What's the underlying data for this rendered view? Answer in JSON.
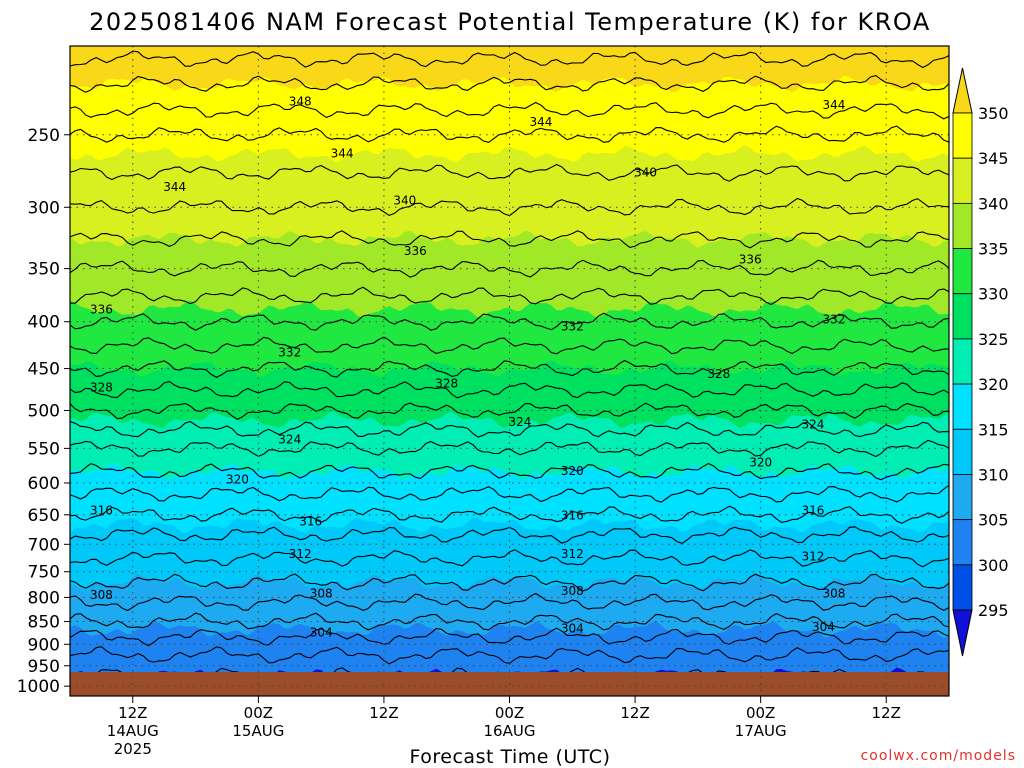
{
  "chart_data": {
    "type": "heatmap",
    "title": "2025081406 NAM Forecast Potential Temperature (K) for KROA",
    "xlabel": "Forecast Time (UTC)",
    "credit": "coolwx.com/models",
    "y_ticks": [
      250,
      300,
      350,
      400,
      450,
      500,
      550,
      600,
      650,
      700,
      750,
      800,
      850,
      900,
      950,
      1000
    ],
    "y_range": [
      200,
      1025
    ],
    "y_scale": "log-pressure, inverted",
    "surface_pressure": 965,
    "x_ticks": [
      {
        "hour": 12,
        "l1": "12Z",
        "l2": "14AUG",
        "l3": "2025"
      },
      {
        "hour": 24,
        "l1": "00Z",
        "l2": "15AUG",
        "l3": ""
      },
      {
        "hour": 36,
        "l1": "12Z",
        "l2": "",
        "l3": ""
      },
      {
        "hour": 48,
        "l1": "00Z",
        "l2": "16AUG",
        "l3": ""
      },
      {
        "hour": 60,
        "l1": "12Z",
        "l2": "",
        "l3": ""
      },
      {
        "hour": 72,
        "l1": "00Z",
        "l2": "17AUG",
        "l3": ""
      },
      {
        "hour": 84,
        "l1": "12Z",
        "l2": "",
        "l3": ""
      }
    ],
    "x_range": [
      6,
      90
    ],
    "grid": true,
    "colorbar": {
      "levels": [
        295,
        300,
        305,
        310,
        315,
        320,
        325,
        330,
        335,
        340,
        345,
        350
      ],
      "labels": [
        "295",
        "300",
        "305",
        "310",
        "315",
        "320",
        "325",
        "330",
        "335",
        "340",
        "345",
        "350"
      ],
      "colors": [
        "#1010d8",
        "#0050e8",
        "#1e82f0",
        "#1eaaf0",
        "#00c8f8",
        "#00e0ff",
        "#00eeb4",
        "#00e060",
        "#20e840",
        "#a0e828",
        "#d8f020",
        "#ffff00",
        "#f8d818"
      ],
      "placement": "right"
    },
    "ground_color": "#9b4c2a",
    "contour_interval": 2,
    "profile": [
      {
        "p": 200,
        "theta": 353
      },
      {
        "p": 220,
        "theta": 350
      },
      {
        "p": 250,
        "theta": 346
      },
      {
        "p": 300,
        "theta": 342
      },
      {
        "p": 350,
        "theta": 338
      },
      {
        "p": 400,
        "theta": 334
      },
      {
        "p": 450,
        "theta": 330
      },
      {
        "p": 500,
        "theta": 326
      },
      {
        "p": 550,
        "theta": 322
      },
      {
        "p": 600,
        "theta": 319
      },
      {
        "p": 650,
        "theta": 316
      },
      {
        "p": 700,
        "theta": 313
      },
      {
        "p": 750,
        "theta": 311
      },
      {
        "p": 800,
        "theta": 308.5
      },
      {
        "p": 850,
        "theta": 306
      },
      {
        "p": 900,
        "theta": 303
      },
      {
        "p": 950,
        "theta": 301
      },
      {
        "p": 1000,
        "theta": 299
      }
    ],
    "contour_labels": [
      {
        "text": "348",
        "hour": 28,
        "p": 230
      },
      {
        "text": "344",
        "hour": 51,
        "p": 242
      },
      {
        "text": "344",
        "hour": 79,
        "p": 232
      },
      {
        "text": "344",
        "hour": 32,
        "p": 262
      },
      {
        "text": "344",
        "hour": 16,
        "p": 285
      },
      {
        "text": "340",
        "hour": 61,
        "p": 275
      },
      {
        "text": "340",
        "hour": 38,
        "p": 295
      },
      {
        "text": "336",
        "hour": 39,
        "p": 335
      },
      {
        "text": "336",
        "hour": 71,
        "p": 342
      },
      {
        "text": "336",
        "hour": 9,
        "p": 388
      },
      {
        "text": "332",
        "hour": 54,
        "p": 405
      },
      {
        "text": "332",
        "hour": 79,
        "p": 398
      },
      {
        "text": "332",
        "hour": 27,
        "p": 432
      },
      {
        "text": "328",
        "hour": 9,
        "p": 472
      },
      {
        "text": "328",
        "hour": 42,
        "p": 467
      },
      {
        "text": "328",
        "hour": 68,
        "p": 456
      },
      {
        "text": "324",
        "hour": 49,
        "p": 515
      },
      {
        "text": "324",
        "hour": 77,
        "p": 518
      },
      {
        "text": "324",
        "hour": 27,
        "p": 538
      },
      {
        "text": "320",
        "hour": 54,
        "p": 582
      },
      {
        "text": "320",
        "hour": 72,
        "p": 570
      },
      {
        "text": "320",
        "hour": 22,
        "p": 595
      },
      {
        "text": "316",
        "hour": 9,
        "p": 643
      },
      {
        "text": "316",
        "hour": 54,
        "p": 651
      },
      {
        "text": "316",
        "hour": 77,
        "p": 643
      },
      {
        "text": "316",
        "hour": 29,
        "p": 661
      },
      {
        "text": "312",
        "hour": 28,
        "p": 717
      },
      {
        "text": "312",
        "hour": 54,
        "p": 717
      },
      {
        "text": "312",
        "hour": 77,
        "p": 722
      },
      {
        "text": "308",
        "hour": 9,
        "p": 795
      },
      {
        "text": "308",
        "hour": 30,
        "p": 792
      },
      {
        "text": "308",
        "hour": 54,
        "p": 787
      },
      {
        "text": "308",
        "hour": 79,
        "p": 792
      },
      {
        "text": "304",
        "hour": 30,
        "p": 874
      },
      {
        "text": "304",
        "hour": 54,
        "p": 865
      },
      {
        "text": "304",
        "hour": 78,
        "p": 862
      }
    ]
  }
}
